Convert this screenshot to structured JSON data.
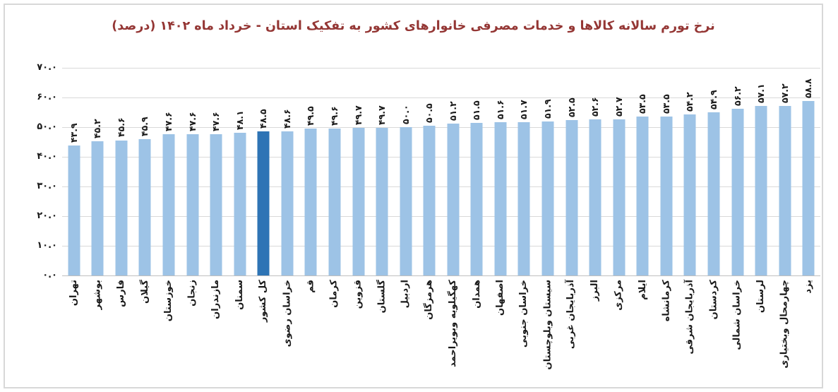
{
  "colors": {
    "bar": "#9DC3E6",
    "highlight": "#2E74B5",
    "title": "#943634",
    "gridline": "#D9D9D9",
    "axis_line": "#BFBFBF",
    "frame_border": "#D8D8D8",
    "text": "#1a1a1a"
  },
  "chart_data": {
    "type": "bar",
    "title": "نرخ تورم سالانه کالاها و خدمات مصرفی خانوارهای کشور به تفکیک استان - خرداد ماه ۱۴۰۲ (درصد)",
    "categories": [
      "تهران",
      "بوشهر",
      "فارس",
      "گیلان",
      "خوزستان",
      "زنجان",
      "مازندران",
      "سمنان",
      "کل کشور",
      "خراسان رضوی",
      "قم",
      "کرمان",
      "قزوین",
      "گلستان",
      "اردبیل",
      "هرمزگان",
      "کهگیلویه وبویراحمد",
      "همدان",
      "اصفهان",
      "خراسان جنوبی",
      "سیستان وبلوچستان",
      "آذربایجان غربی",
      "البرز",
      "مرکزی",
      "ایلام",
      "کرمانشاه",
      "آذربایجان شرقی",
      "کردستان",
      "خراسان شمالی",
      "لرستان",
      "چهارمحال وبختیاری",
      "یزد"
    ],
    "values": [
      43.9,
      45.2,
      45.6,
      45.9,
      47.6,
      47.6,
      47.6,
      48.1,
      48.5,
      48.6,
      49.5,
      49.6,
      49.7,
      49.7,
      50.0,
      50.5,
      51.2,
      51.5,
      51.6,
      51.7,
      51.9,
      52.5,
      52.6,
      52.7,
      53.5,
      53.5,
      54.2,
      54.9,
      56.2,
      57.1,
      57.2,
      58.8
    ],
    "value_labels": [
      "۴۳.۹",
      "۴۵.۲",
      "۴۵.۶",
      "۴۵.۹",
      "۴۷.۶",
      "۴۷.۶",
      "۴۷.۶",
      "۴۸.۱",
      "۴۸.۵",
      "۴۸.۶",
      "۴۹.۵",
      "۴۹.۶",
      "۴۹.۷",
      "۴۹.۷",
      "۵۰.۰",
      "۵۰.۵",
      "۵۱.۲",
      "۵۱.۵",
      "۵۱.۶",
      "۵۱.۷",
      "۵۱.۹",
      "۵۲.۵",
      "۵۲.۶",
      "۵۲.۷",
      "۵۳.۵",
      "۵۳.۵",
      "۵۴.۲",
      "۵۴.۹",
      "۵۶.۲",
      "۵۷.۱",
      "۵۷.۲",
      "۵۸.۸"
    ],
    "y_ticks": [
      "۷۰.۰",
      "۶۰.۰",
      "۵۰.۰",
      "۴۰.۰",
      "۳۰.۰",
      "۲۰.۰",
      "۱۰.۰",
      "۰.۰"
    ],
    "ylim": [
      0,
      70
    ],
    "y_tick_step": 10,
    "highlight_index": 8,
    "highlight_category": "کل کشور",
    "grid": true,
    "legend": "none",
    "bar_label_rotation": 90,
    "x_label_rotation": 90,
    "xlabel": "",
    "ylabel": ""
  }
}
